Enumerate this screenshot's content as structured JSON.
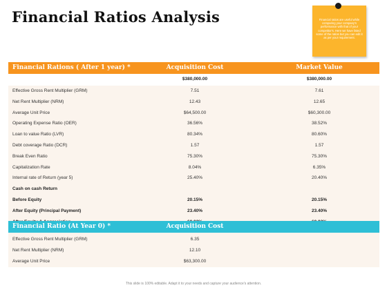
{
  "title": "Financial Ratios Analysis",
  "note": {
    "text": "Financial ratios are useful while comparing your company's performance with that of your competitor's. Here we have listed some of the ratios but you can edit it as per your requirement."
  },
  "table1": {
    "headers": [
      "Financial Rations ( After 1 year) *",
      "Acquisition Cost",
      "Market Value"
    ],
    "total_row": [
      "",
      "$380,000.00",
      "$380,000.00"
    ],
    "rows": [
      [
        "Effective Gross Rent Multiplier (GRM)",
        "7.51",
        "7.61"
      ],
      [
        "Net Rent Multiplier (NRM)",
        "12.43",
        "12.65"
      ],
      [
        "Average Unit Price",
        "$64,500.00",
        "$60,300.00"
      ],
      [
        "Operating Expense Ratio (OER)",
        "36.56%",
        "38.52%"
      ],
      [
        "Loan to value Ratio (LVR)",
        "80.34%",
        "80.60%"
      ],
      [
        "Debt coverage Ratio (DCR)",
        "1.57",
        "1.57"
      ],
      [
        "Break Even Ratio",
        "75.30%",
        "75.30%"
      ],
      [
        "Capitalization Rate",
        "8.04%",
        "6.35%"
      ],
      [
        "Internal rate of Return (year 5)",
        "25.40%",
        "20.40%"
      ],
      [
        "Cash on cash Return",
        "",
        ""
      ],
      [
        "Before Equity",
        "20.15%",
        "20.15%"
      ],
      [
        "After Equity  (Principal Payment)",
        "23.40%",
        "23.40%"
      ],
      [
        "After Equity  & Appreciation",
        "60.02%",
        "60.02%"
      ]
    ]
  },
  "table2": {
    "headers": [
      "Financial Ratio (At Year 0) *",
      "Acquisition Cost"
    ],
    "rows": [
      [
        "Effective Gross Rent Multiplier (GRM)",
        "6.35"
      ],
      [
        "Net Rent Multiplier (NRM)",
        "12.10"
      ],
      [
        "Average Unit Price",
        "$63,300.00"
      ]
    ]
  },
  "footer": "This slide is 100% editable. Adapt it to your needs and capture your audience's attention.",
  "colors": {
    "orange": "#f7941e",
    "cyan": "#2ebfd6",
    "note": "#fcb52c",
    "row_bg": "#fbf4ed"
  }
}
